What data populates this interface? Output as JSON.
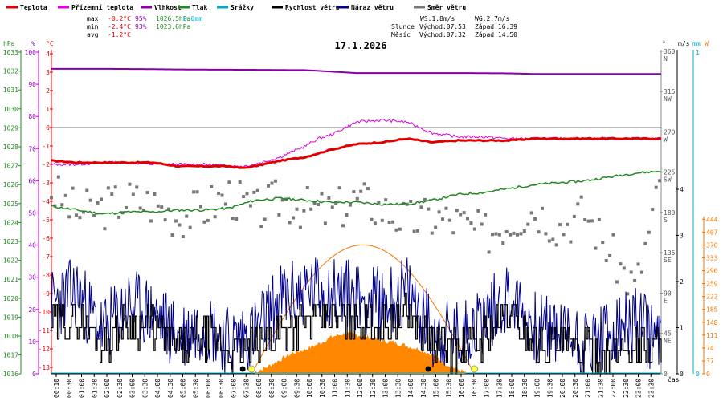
{
  "chart_data": {
    "type": "line",
    "title": "17.1.2026",
    "legend": [
      {
        "key": "temp",
        "label": "Teplota",
        "color": "#e00000"
      },
      {
        "key": "feels",
        "label": "Přízemní teplota",
        "color": "#dd00dd"
      },
      {
        "key": "hum",
        "label": "Vlhkost",
        "color": "#8800aa"
      },
      {
        "key": "press",
        "label": "Tlak",
        "color": "#228822"
      },
      {
        "key": "rain",
        "label": "Srážky",
        "color": "#00aacc"
      },
      {
        "key": "wind",
        "label": "Rychlost větru",
        "color": "#000000"
      },
      {
        "key": "gust",
        "label": "Náraz větru",
        "color": "#000088"
      },
      {
        "key": "dir",
        "label": "Směr větru",
        "color": "#777777"
      }
    ],
    "stats": {
      "max_label": "max",
      "max_temp": "-0.2°C",
      "max_hum": "95%",
      "max_press": "1026.5hPa",
      "rain_total": "0.0mm",
      "min_label": "min",
      "min_temp": "-2.4°C",
      "min_hum": "93%",
      "min_press": "1023.6hPa",
      "avg_label": "avg",
      "avg_temp": "-1.2°C"
    },
    "info": {
      "ws": "WS:1.8m/s",
      "wg": "WG:2.7m/s",
      "sun_label": "Slunce",
      "sunrise": "Východ:07:53",
      "sunset": "Západ:16:39",
      "moon_label": "Měsíc",
      "moonrise": "Východ:07:32",
      "moonset": "Západ:14:50"
    },
    "units": {
      "hpa": "hPa",
      "pct": "%",
      "degc": "°C",
      "deg": "°",
      "ms": "m/s",
      "mm": "mm",
      "w": "W",
      "time": "čas"
    },
    "axes": {
      "hpa_ticks": [
        "1033",
        "1032",
        "1031",
        "1030",
        "1029",
        "1028",
        "1027",
        "1026",
        "1025",
        "1024",
        "1023",
        "1022",
        "1021",
        "1020",
        "1019",
        "1018",
        "1017",
        "1016"
      ],
      "pct_ticks": [
        "100",
        "90",
        "80",
        "70",
        "60",
        "50",
        "40",
        "30",
        "20",
        "10",
        "0"
      ],
      "temp_ticks": [
        "4",
        "3",
        "2",
        "1",
        "0",
        "-1",
        "-2",
        "-3",
        "-4",
        "-5",
        "-6",
        "-7",
        "-8",
        "-9",
        "-10",
        "-11",
        "-12",
        "-13"
      ],
      "dir_ticks": [
        {
          "deg": "360",
          "label": "N"
        },
        {
          "deg": "315",
          "label": "NW"
        },
        {
          "deg": "270",
          "label": "W"
        },
        {
          "deg": "225",
          "label": "SW"
        },
        {
          "deg": "180",
          "label": "S"
        },
        {
          "deg": "135",
          "label": "SE"
        },
        {
          "deg": "90",
          "label": "E"
        },
        {
          "deg": "45",
          "label": "NE"
        },
        {
          "deg": "0",
          "label": ""
        }
      ],
      "ms_ticks": [
        "4",
        "3",
        "2",
        "1",
        "0"
      ],
      "mm_ticks": [
        "1",
        "0"
      ],
      "w_ticks": [
        "444",
        "407",
        "370",
        "333",
        "296",
        "259",
        "222",
        "185",
        "148",
        "111",
        "74",
        "37",
        "0"
      ],
      "x_ticks": [
        "00:10",
        "00:30",
        "01:00",
        "01:30",
        "02:00",
        "02:30",
        "03:00",
        "03:30",
        "04:00",
        "04:30",
        "05:00",
        "05:30",
        "06:00",
        "06:30",
        "07:00",
        "07:30",
        "08:00",
        "08:30",
        "09:00",
        "09:30",
        "10:00",
        "10:30",
        "11:00",
        "11:30",
        "12:00",
        "12:30",
        "13:00",
        "13:30",
        "14:00",
        "14:30",
        "15:00",
        "15:30",
        "16:00",
        "16:30",
        "17:00",
        "17:30",
        "18:00",
        "18:30",
        "19:00",
        "19:30",
        "20:00",
        "20:30",
        "21:00",
        "21:30",
        "22:00",
        "22:30",
        "23:00",
        "23:30"
      ]
    },
    "temp_series": {
      "name": "Teplota",
      "unit": "°C",
      "x_hours": [
        0,
        1,
        2,
        3,
        4,
        5,
        6,
        7,
        7.5,
        8,
        9,
        10,
        11,
        12,
        13,
        14,
        15,
        16,
        17,
        18,
        19,
        20,
        21,
        22,
        23,
        24
      ],
      "values": [
        -1.8,
        -1.9,
        -1.9,
        -1.9,
        -1.9,
        -2.1,
        -2.1,
        -2.1,
        -2.2,
        -2.1,
        -1.8,
        -1.6,
        -1.2,
        -0.9,
        -0.8,
        -0.6,
        -0.8,
        -0.7,
        -0.7,
        -0.7,
        -0.6,
        -0.6,
        -0.6,
        -0.6,
        -0.6,
        -0.6
      ]
    },
    "feels_series": {
      "name": "Přízemní teplota",
      "unit": "°C",
      "x_hours": [
        0,
        1,
        2,
        3,
        4,
        5,
        6,
        7,
        7.5,
        8,
        9,
        10,
        10.5,
        11,
        12,
        13,
        14,
        14.5,
        15,
        16,
        17,
        18,
        19,
        20,
        21,
        22,
        23,
        24
      ],
      "values": [
        -2.0,
        -2.0,
        -1.9,
        -1.9,
        -2.0,
        -2.0,
        -2.0,
        -2.1,
        -2.1,
        -2.0,
        -1.6,
        -1.0,
        -0.6,
        -0.4,
        0.3,
        0.4,
        0.3,
        0,
        -0.3,
        -0.5,
        -0.5,
        -0.6,
        -0.6,
        -0.6,
        -0.6,
        -0.6,
        -0.6,
        -0.6
      ]
    },
    "hum_series": {
      "name": "Vlhkost",
      "unit": "%",
      "x_hours": [
        0,
        2,
        4,
        5,
        8,
        10,
        12,
        14,
        16,
        18,
        19,
        20,
        22,
        24
      ],
      "values": [
        94.8,
        94.8,
        94.7,
        94.6,
        94.5,
        94.4,
        93.5,
        93.5,
        93.5,
        93.4,
        93.2,
        93.2,
        93.2,
        93.2
      ]
    },
    "press_series": {
      "name": "Tlak",
      "unit": "hPa",
      "x_hours": [
        0,
        1,
        2,
        3,
        4,
        5,
        6,
        7,
        8,
        9,
        10,
        11,
        12,
        13,
        14,
        15,
        16,
        17,
        18,
        19,
        20,
        21,
        22,
        23,
        24
      ],
      "values": [
        1024.6,
        1024.4,
        1024.2,
        1024.3,
        1024.3,
        1024.4,
        1024.4,
        1024.5,
        1024.9,
        1025.0,
        1024.9,
        1024.8,
        1024.8,
        1024.7,
        1024.7,
        1024.9,
        1025.2,
        1025.3,
        1025.5,
        1025.7,
        1025.8,
        1025.9,
        1026.1,
        1026.3,
        1026.4
      ]
    },
    "wind_series": {
      "name": "Rychlost větru",
      "unit": "m/s",
      "x_hours": [
        0,
        1,
        2,
        3,
        4,
        5,
        6,
        7,
        8,
        9,
        10,
        11,
        12,
        13,
        14,
        15,
        16,
        17,
        18,
        19,
        20,
        21,
        22,
        23,
        24
      ],
      "values": [
        1.0,
        1.2,
        0.7,
        1.1,
        1.0,
        0.6,
        0.8,
        0.5,
        0.5,
        1.0,
        1.1,
        1.2,
        1.2,
        1.0,
        1.3,
        0.7,
        0.5,
        0.8,
        1.3,
        0.7,
        0.6,
        0.5,
        0.4,
        0.6,
        0.6
      ]
    },
    "gust_series": {
      "name": "Náraz větru",
      "unit": "m/s",
      "x_hours": [
        0,
        1,
        2,
        3,
        4,
        5,
        6,
        7,
        8,
        9,
        10,
        11,
        12,
        13,
        14,
        15,
        16,
        17,
        18,
        19,
        20,
        21,
        22,
        23,
        24
      ],
      "values": [
        1.5,
        1.8,
        0.9,
        1.5,
        1.3,
        0.8,
        1.1,
        0.7,
        0.9,
        1.6,
        1.8,
        1.8,
        1.7,
        1.5,
        1.8,
        0.9,
        0.8,
        1.2,
        1.7,
        1.0,
        0.9,
        0.7,
        0.8,
        1.1,
        0.7
      ]
    },
    "dir_series": {
      "name": "Směr větru",
      "unit": "°",
      "x_hours": [
        0,
        1,
        2,
        3,
        4,
        5,
        6,
        7,
        8,
        9,
        10,
        11,
        12,
        13,
        14,
        15,
        16,
        17,
        18,
        19,
        20,
        21,
        22,
        23,
        24
      ],
      "values": [
        205,
        180,
        185,
        195,
        190,
        175,
        185,
        200,
        180,
        195,
        185,
        180,
        195,
        185,
        170,
        175,
        170,
        155,
        170,
        185,
        165,
        180,
        135,
        95,
        215
      ]
    },
    "solar_series": {
      "name": "Solar",
      "unit": "W",
      "x_hours": [
        8.0,
        8.5,
        9,
        9.5,
        10,
        10.5,
        11,
        11.5,
        12,
        12.5,
        13,
        13.5,
        14,
        14.5,
        15,
        15.5,
        16,
        16.3
      ],
      "values": [
        5,
        20,
        40,
        60,
        70,
        85,
        105,
        115,
        112,
        106,
        95,
        90,
        80,
        70,
        55,
        30,
        12,
        3
      ]
    },
    "sun_path": {
      "rise_hour": 7.88,
      "set_hour": 16.65,
      "peak_w": 370
    },
    "rain_series": {
      "name": "Srážky",
      "unit": "mm",
      "values": [
        0
      ]
    }
  }
}
